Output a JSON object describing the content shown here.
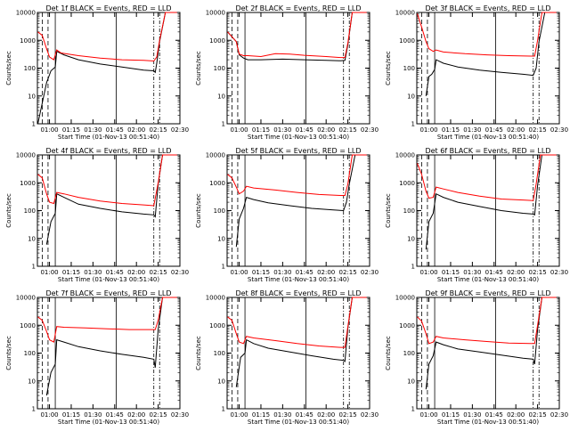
{
  "colors": {
    "events": "#000000",
    "lld": "#ff0000",
    "axis": "#000000"
  },
  "chart_data": [
    {
      "type": "line",
      "title": "Det 1f BLACK = Events, RED = LLD",
      "xlabel": "Start Time (01-Nov-13 00:51:40)",
      "ylabel": "Counts/sec",
      "yscale": "log",
      "ylim": [
        1,
        10000
      ],
      "xticks": [
        "01:00",
        "01:15",
        "01:30",
        "01:45",
        "02:00",
        "02:15",
        "02:30"
      ],
      "series": [
        {
          "name": "Events",
          "color": "#000000",
          "x": [
            "00:52",
            "00:58",
            "01:01",
            "01:04",
            "01:05",
            "01:10",
            "01:20",
            "01:35",
            "01:50",
            "02:05",
            "02:12",
            "02:13",
            "02:14",
            "02:16",
            "02:20",
            "02:28"
          ],
          "y": [
            1,
            30,
            80,
            110,
            400,
            300,
            200,
            140,
            110,
            85,
            80,
            70,
            150,
            900,
            10000,
            10000
          ]
        },
        {
          "name": "LLD",
          "color": "#ff0000",
          "x": [
            "00:52",
            "00:55",
            "00:58",
            "01:00",
            "01:03",
            "01:05",
            "01:08",
            "01:20",
            "01:35",
            "01:50",
            "02:05",
            "02:12",
            "02:14",
            "02:16",
            "02:20",
            "02:28"
          ],
          "y": [
            2000,
            1500,
            500,
            250,
            200,
            450,
            350,
            280,
            230,
            200,
            190,
            180,
            250,
            1000,
            10000,
            10000
          ]
        }
      ]
    },
    {
      "type": "line",
      "title": "Det 2f BLACK = Events, RED = LLD",
      "xlabel": "Start Time (01-Nov-13 00:51:40)",
      "ylabel": "Counts/sec",
      "yscale": "log",
      "ylim": [
        1,
        10000
      ],
      "xticks": [
        "01:00",
        "01:15",
        "01:30",
        "01:45",
        "02:00",
        "02:15",
        "02:30"
      ],
      "series": [
        {
          "name": "Events",
          "color": "#000000",
          "x": [
            "00:52",
            "00:58",
            "01:00",
            "01:03",
            "01:06",
            "01:15",
            "01:30",
            "01:45",
            "02:00",
            "02:10",
            "02:13",
            "02:15",
            "02:18",
            "02:28"
          ],
          "y": [
            2000,
            900,
            300,
            230,
            200,
            200,
            210,
            200,
            190,
            185,
            190,
            700,
            10000,
            10000
          ]
        },
        {
          "name": "LLD",
          "color": "#ff0000",
          "x": [
            "00:52",
            "00:58",
            "01:00",
            "01:03",
            "01:06",
            "01:15",
            "01:25",
            "01:35",
            "01:45",
            "02:00",
            "02:10",
            "02:13",
            "02:15",
            "02:18",
            "02:28"
          ],
          "y": [
            2000,
            900,
            320,
            280,
            280,
            260,
            330,
            320,
            290,
            260,
            240,
            240,
            800,
            10000,
            10000
          ]
        }
      ]
    },
    {
      "type": "line",
      "title": "Det 3f BLACK = Events, RED = LLD",
      "xlabel": "Start Time (01-Nov-13 00:51:40)",
      "ylabel": "Counts/sec",
      "yscale": "log",
      "ylim": [
        1,
        10000
      ],
      "xticks": [
        "01:00",
        "01:15",
        "01:30",
        "01:45",
        "02:00",
        "02:15",
        "02:30"
      ],
      "series": [
        {
          "name": "Events",
          "color": "#000000",
          "x": [
            "00:58",
            "01:00",
            "01:02",
            "01:04",
            "01:05",
            "01:10",
            "01:20",
            "01:35",
            "01:50",
            "02:05",
            "02:12",
            "02:14",
            "02:16",
            "02:20",
            "02:28"
          ],
          "y": [
            10,
            50,
            60,
            90,
            200,
            150,
            110,
            85,
            70,
            60,
            55,
            100,
            900,
            10000,
            10000
          ]
        },
        {
          "name": "LLD",
          "color": "#ff0000",
          "x": [
            "00:52",
            "00:55",
            "00:58",
            "01:00",
            "01:03",
            "01:05",
            "01:10",
            "01:25",
            "01:40",
            "01:55",
            "02:10",
            "02:13",
            "02:15",
            "02:18",
            "02:28"
          ],
          "y": [
            9000,
            3000,
            900,
            500,
            400,
            450,
            380,
            330,
            300,
            280,
            270,
            270,
            1000,
            10000,
            10000
          ]
        }
      ]
    },
    {
      "type": "line",
      "title": "Det 4f BLACK = Events, RED = LLD",
      "xlabel": "Start Time (01-Nov-13 00:51:40)",
      "ylabel": "Counts/sec",
      "yscale": "log",
      "ylim": [
        1,
        10000
      ],
      "xticks": [
        "01:00",
        "01:15",
        "01:30",
        "01:45",
        "02:00",
        "02:15",
        "02:30"
      ],
      "series": [
        {
          "name": "Events",
          "color": "#000000",
          "x": [
            "00:58",
            "01:01",
            "01:04",
            "01:05",
            "01:10",
            "01:20",
            "01:35",
            "01:50",
            "02:05",
            "02:12",
            "02:13",
            "02:15",
            "02:18",
            "02:28"
          ],
          "y": [
            6,
            40,
            80,
            400,
            300,
            170,
            120,
            90,
            75,
            70,
            60,
            900,
            10000,
            10000
          ]
        },
        {
          "name": "LLD",
          "color": "#ff0000",
          "x": [
            "00:52",
            "00:55",
            "00:58",
            "01:00",
            "01:03",
            "01:05",
            "01:10",
            "01:20",
            "01:35",
            "01:50",
            "02:05",
            "02:12",
            "02:15",
            "02:18",
            "02:28"
          ],
          "y": [
            2000,
            1500,
            400,
            200,
            180,
            450,
            400,
            300,
            220,
            180,
            160,
            150,
            1000,
            10000,
            10000
          ]
        }
      ]
    },
    {
      "type": "line",
      "title": "Det 5f BLACK = Events, RED = LLD",
      "xlabel": "Start Time (01-Nov-13 00:51:40)",
      "ylabel": "Counts/sec",
      "yscale": "log",
      "ylim": [
        1,
        10000
      ],
      "xticks": [
        "01:00",
        "01:15",
        "01:30",
        "01:45",
        "02:00",
        "02:15",
        "02:30"
      ],
      "series": [
        {
          "name": "Events",
          "color": "#000000",
          "x": [
            "00:58",
            "01:00",
            "01:03",
            "01:05",
            "01:10",
            "01:20",
            "01:35",
            "01:50",
            "02:05",
            "02:12",
            "02:14",
            "02:16",
            "02:20",
            "02:28"
          ],
          "y": [
            5,
            50,
            120,
            300,
            250,
            190,
            150,
            120,
            105,
            100,
            200,
            900,
            10000,
            10000
          ]
        },
        {
          "name": "LLD",
          "color": "#ff0000",
          "x": [
            "00:52",
            "00:55",
            "00:58",
            "01:00",
            "01:03",
            "01:05",
            "01:10",
            "01:25",
            "01:40",
            "01:55",
            "02:10",
            "02:13",
            "02:15",
            "02:18",
            "02:28"
          ],
          "y": [
            2000,
            1500,
            700,
            400,
            500,
            750,
            650,
            550,
            450,
            380,
            350,
            350,
            900,
            10000,
            10000
          ]
        }
      ]
    },
    {
      "type": "line",
      "title": "Det 6f BLACK = Events, RED = LLD",
      "xlabel": "Start Time (01-Nov-13 00:51:40)",
      "ylabel": "Counts/sec",
      "yscale": "log",
      "ylim": [
        1,
        10000
      ],
      "xticks": [
        "01:00",
        "01:15",
        "01:30",
        "01:45",
        "02:00",
        "02:15",
        "02:30"
      ],
      "series": [
        {
          "name": "Events",
          "color": "#000000",
          "x": [
            "00:58",
            "01:00",
            "01:03",
            "01:05",
            "01:10",
            "01:20",
            "01:35",
            "01:50",
            "02:05",
            "02:12",
            "02:13",
            "02:15",
            "02:18",
            "02:28"
          ],
          "y": [
            4,
            40,
            80,
            400,
            300,
            200,
            140,
            100,
            80,
            75,
            70,
            800,
            10000,
            10000
          ]
        },
        {
          "name": "LLD",
          "color": "#ff0000",
          "x": [
            "00:52",
            "00:55",
            "00:58",
            "01:00",
            "01:03",
            "01:05",
            "01:10",
            "01:20",
            "01:35",
            "01:50",
            "02:05",
            "02:12",
            "02:14",
            "02:17",
            "02:28"
          ],
          "y": [
            5000,
            2000,
            500,
            280,
            300,
            700,
            600,
            450,
            330,
            260,
            240,
            230,
            900,
            10000,
            10000
          ]
        }
      ]
    },
    {
      "type": "line",
      "title": "Det 7f BLACK = Events, RED = LLD",
      "xlabel": "Start Time (01-Nov-13 00:51:40)",
      "ylabel": "Counts/sec",
      "yscale": "log",
      "ylim": [
        1,
        10000
      ],
      "xticks": [
        "01:00",
        "01:15",
        "01:30",
        "01:45",
        "02:00",
        "02:15",
        "02:30"
      ],
      "series": [
        {
          "name": "Events",
          "color": "#000000",
          "x": [
            "00:58",
            "01:01",
            "01:04",
            "01:05",
            "01:10",
            "01:20",
            "01:35",
            "01:50",
            "02:05",
            "02:12",
            "02:13",
            "02:15",
            "02:18",
            "02:28"
          ],
          "y": [
            3,
            20,
            40,
            300,
            250,
            170,
            120,
            90,
            70,
            60,
            30,
            700,
            10000,
            10000
          ]
        },
        {
          "name": "LLD",
          "color": "#ff0000",
          "x": [
            "00:52",
            "00:55",
            "00:58",
            "01:00",
            "01:03",
            "01:05",
            "01:10",
            "01:25",
            "01:40",
            "01:55",
            "02:10",
            "02:13",
            "02:15",
            "02:18",
            "02:28"
          ],
          "y": [
            2000,
            1500,
            600,
            300,
            250,
            900,
            850,
            800,
            750,
            700,
            700,
            700,
            1500,
            10000,
            10000
          ]
        }
      ]
    },
    {
      "type": "line",
      "title": "Det 8f BLACK = Events, RED = LLD",
      "xlabel": "Start Time (01-Nov-13 00:51:40)",
      "ylabel": "Counts/sec",
      "yscale": "log",
      "ylim": [
        1,
        10000
      ],
      "xticks": [
        "01:00",
        "01:15",
        "01:30",
        "01:45",
        "02:00",
        "02:15",
        "02:30"
      ],
      "series": [
        {
          "name": "Events",
          "color": "#000000",
          "x": [
            "00:58",
            "01:01",
            "01:04",
            "01:05",
            "01:10",
            "01:20",
            "01:35",
            "01:50",
            "02:05",
            "02:12",
            "02:13",
            "02:15",
            "02:18",
            "02:28"
          ],
          "y": [
            6,
            70,
            100,
            300,
            220,
            150,
            110,
            80,
            60,
            55,
            50,
            800,
            10000,
            10000
          ]
        },
        {
          "name": "LLD",
          "color": "#ff0000",
          "x": [
            "00:52",
            "00:55",
            "00:58",
            "01:00",
            "01:03",
            "01:05",
            "01:10",
            "01:25",
            "01:40",
            "01:55",
            "02:10",
            "02:13",
            "02:15",
            "02:18",
            "02:28"
          ],
          "y": [
            2000,
            1500,
            500,
            250,
            220,
            400,
            350,
            280,
            220,
            180,
            160,
            160,
            900,
            10000,
            10000
          ]
        }
      ]
    },
    {
      "type": "line",
      "title": "Det 9f BLACK = Events, RED = LLD",
      "xlabel": "Start Time (01-Nov-13 00:51:40)",
      "ylabel": "Counts/sec",
      "yscale": "log",
      "ylim": [
        1,
        10000
      ],
      "xticks": [
        "01:00",
        "01:15",
        "01:30",
        "01:45",
        "02:00",
        "02:15",
        "02:30"
      ],
      "series": [
        {
          "name": "Events",
          "color": "#000000",
          "x": [
            "00:58",
            "01:00",
            "01:03",
            "01:05",
            "01:10",
            "01:20",
            "01:35",
            "01:50",
            "02:05",
            "02:12",
            "02:13",
            "02:15",
            "02:18",
            "02:28"
          ],
          "y": [
            5,
            40,
            80,
            250,
            200,
            140,
            110,
            85,
            65,
            60,
            40,
            700,
            10000,
            10000
          ]
        },
        {
          "name": "LLD",
          "color": "#ff0000",
          "x": [
            "00:52",
            "00:55",
            "00:58",
            "01:00",
            "01:03",
            "01:05",
            "01:10",
            "01:25",
            "01:40",
            "01:55",
            "02:10",
            "02:13",
            "02:15",
            "02:18",
            "02:28"
          ],
          "y": [
            2000,
            1400,
            500,
            220,
            250,
            400,
            350,
            300,
            260,
            230,
            220,
            220,
            1000,
            10000,
            10000
          ]
        }
      ]
    }
  ]
}
